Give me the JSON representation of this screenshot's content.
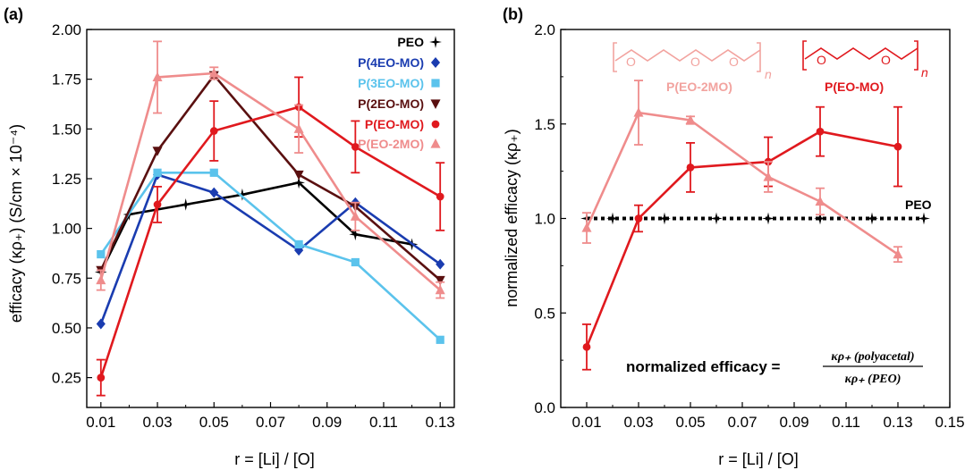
{
  "colors": {
    "PEO": "#000000",
    "P(4EO-MO)": "#1a3cb0",
    "P(3EO-MO)": "#5bc3ec",
    "P(2EO-MO)": "#5a1010",
    "P(EO-MO)": "#e0191e",
    "P(EO-2MO)": "#ef8c8c"
  },
  "panel_a": {
    "label": "(a)",
    "ylabel": "efficacy (κρ₊) (S/cm × 10⁻⁴)",
    "xlabel": "r = [Li] / [O]",
    "x_ticks": [
      "0.01",
      "0.03",
      "0.05",
      "0.07",
      "0.09",
      "0.11",
      "0.13"
    ],
    "y_ticks": [
      "0.25",
      "0.50",
      "0.75",
      "1.00",
      "1.25",
      "1.50",
      "1.75",
      "2.00"
    ],
    "legend": [
      "PEO",
      "P(4EO-MO)",
      "P(3EO-MO)",
      "P(2EO-MO)",
      "P(EO-MO)",
      "P(EO-2MO)"
    ]
  },
  "panel_b": {
    "label": "(b)",
    "ylabel": "normalized efficacy (κρ₊)",
    "xlabel": "r = [Li] / [O]",
    "x_ticks": [
      "0.01",
      "0.03",
      "0.05",
      "0.07",
      "0.09",
      "0.11",
      "0.13",
      "0.15"
    ],
    "y_ticks": [
      "0.0",
      "0.5",
      "1.0",
      "1.5",
      "2.0"
    ],
    "peo_label": "PEO",
    "struct_labels": [
      "P(EO-2MO)",
      "P(EO-MO)"
    ],
    "struct_atoms": [
      "O",
      "O",
      "O",
      "O",
      "O"
    ],
    "struct_n": "n",
    "formula_lhs": "normalized efficacy =",
    "formula_num": "κρ₊ (polyacetal)",
    "formula_den": "κρ₊ (PEO)"
  },
  "chart_data": [
    {
      "type": "line",
      "title": "",
      "xlabel": "r = [Li] / [O]",
      "ylabel": "efficacy (κρ₊) (S/cm × 10⁻⁴)",
      "xlim": [
        0.005,
        0.135
      ],
      "ylim": [
        0.1,
        2.0
      ],
      "grid": false,
      "legend_position": "top-right",
      "series": [
        {
          "name": "PEO",
          "marker": "star",
          "x": [
            0.01,
            0.02,
            0.04,
            0.06,
            0.08,
            0.1,
            0.12
          ],
          "y": [
            0.78,
            1.07,
            1.12,
            1.17,
            1.23,
            0.97,
            0.92
          ]
        },
        {
          "name": "P(4EO-MO)",
          "marker": "diamond",
          "x": [
            0.01,
            0.03,
            0.05,
            0.08,
            0.1,
            0.13
          ],
          "y": [
            0.52,
            1.27,
            1.18,
            0.89,
            1.13,
            0.82
          ]
        },
        {
          "name": "P(3EO-MO)",
          "marker": "square",
          "x": [
            0.01,
            0.03,
            0.05,
            0.08,
            0.1,
            0.13
          ],
          "y": [
            0.87,
            1.28,
            1.28,
            0.92,
            0.83,
            0.44
          ]
        },
        {
          "name": "P(2EO-MO)",
          "marker": "triangle-down",
          "x": [
            0.01,
            0.03,
            0.05,
            0.08,
            0.1,
            0.13
          ],
          "y": [
            0.79,
            1.39,
            1.77,
            1.27,
            1.11,
            0.74
          ]
        },
        {
          "name": "P(EO-MO)",
          "marker": "circle",
          "x": [
            0.01,
            0.03,
            0.05,
            0.08,
            0.1,
            0.13
          ],
          "y": [
            0.25,
            1.12,
            1.49,
            1.61,
            1.41,
            1.16
          ],
          "err": [
            0.09,
            0.09,
            0.15,
            0.15,
            0.13,
            0.17
          ]
        },
        {
          "name": "P(EO-2MO)",
          "marker": "triangle-up",
          "x": [
            0.01,
            0.03,
            0.05,
            0.08,
            0.1,
            0.13
          ],
          "y": [
            0.74,
            1.76,
            1.78,
            1.5,
            1.06,
            0.69
          ],
          "err": [
            0.05,
            0.18,
            0.03,
            0.12,
            0.07,
            0.04
          ]
        }
      ]
    },
    {
      "type": "line",
      "title": "",
      "xlabel": "r = [Li] / [O]",
      "ylabel": "normalized efficacy (κρ₊)",
      "xlim": [
        0.0,
        0.15
      ],
      "ylim": [
        0.0,
        2.0
      ],
      "grid": false,
      "series": [
        {
          "name": "PEO",
          "marker": "star",
          "dashed": true,
          "x": [
            0.01,
            0.02,
            0.04,
            0.06,
            0.08,
            0.1,
            0.12,
            0.14
          ],
          "y": [
            1.0,
            1.0,
            1.0,
            1.0,
            1.0,
            1.0,
            1.0,
            1.0
          ]
        },
        {
          "name": "P(EO-MO)",
          "marker": "circle",
          "x": [
            0.01,
            0.03,
            0.05,
            0.08,
            0.1,
            0.13
          ],
          "y": [
            0.32,
            1.0,
            1.27,
            1.3,
            1.46,
            1.38
          ],
          "err": [
            0.12,
            0.07,
            0.13,
            0.13,
            0.13,
            0.21
          ]
        },
        {
          "name": "P(EO-2MO)",
          "marker": "triangle-up",
          "x": [
            0.01,
            0.03,
            0.05,
            0.08,
            0.1,
            0.13
          ],
          "y": [
            0.95,
            1.56,
            1.52,
            1.22,
            1.09,
            0.81
          ],
          "err": [
            0.08,
            0.17,
            0.02,
            0.08,
            0.07,
            0.04
          ]
        }
      ]
    }
  ]
}
